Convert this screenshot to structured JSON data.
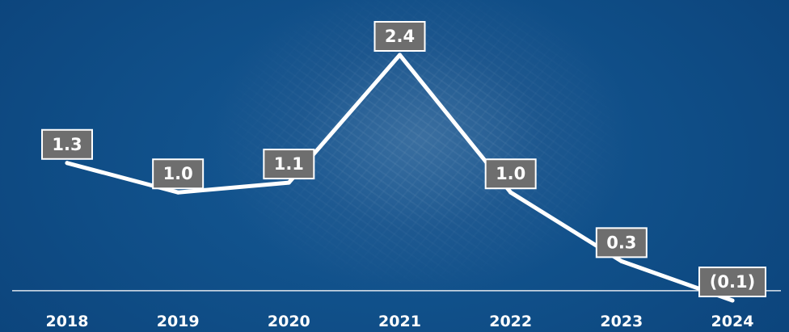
{
  "chart_data": {
    "type": "line",
    "title": "",
    "xlabel": "",
    "ylabel": "",
    "categories": [
      "2018",
      "2019",
      "2020",
      "2021",
      "2022",
      "2023",
      "2024"
    ],
    "values": [
      1.3,
      1.0,
      1.1,
      2.4,
      1.0,
      0.3,
      -0.1
    ],
    "data_labels": [
      "1.3",
      "1.0",
      "1.1",
      "2.4",
      "1.0",
      "0.3",
      "(0.1)"
    ],
    "ylim": [
      -0.1,
      2.4
    ],
    "grid": false,
    "legend": "none",
    "colors": {
      "background": "#0e4a80",
      "line": "#ffffff",
      "label_box": "#6e6e6e",
      "label_border": "#ffffff",
      "baseline": "#dfe6ee",
      "text": "#ffffff"
    }
  }
}
